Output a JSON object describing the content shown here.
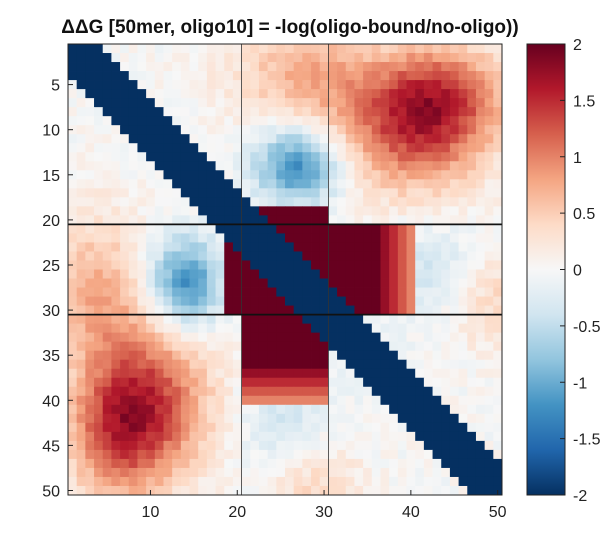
{
  "chart_data": {
    "type": "heatmap",
    "title": "ΔΔG [50mer, oligo10] = -log(oligo-bound/no-oligo))",
    "xlabel": "",
    "ylabel": "",
    "n": 50,
    "x_range": [
      1,
      50
    ],
    "y_range": [
      1,
      50
    ],
    "y_direction": "reversed",
    "x_ticks": [
      10,
      20,
      30,
      40,
      50
    ],
    "y_ticks": [
      5,
      10,
      15,
      20,
      25,
      30,
      35,
      40,
      45,
      50
    ],
    "x_tick_labels": [
      "10",
      "20",
      "30",
      "40",
      "50"
    ],
    "y_tick_labels": [
      "5",
      "10",
      "15",
      "20",
      "25",
      "30",
      "35",
      "40",
      "45",
      "50"
    ],
    "color_limits": [
      -2,
      2
    ],
    "colorbar_ticks": [
      2,
      1.5,
      1,
      0.5,
      0,
      -0.5,
      -1,
      -1.5,
      -2
    ],
    "colorbar_tick_labels": [
      "2",
      "1.5",
      "1",
      "0.5",
      "0",
      "-0.5",
      "-1",
      "-1.5",
      "-2"
    ],
    "colormap": "red-white-blue (diverging)",
    "colormap_stops": [
      "#053061",
      "#2166ac",
      "#4393c3",
      "#92c5de",
      "#d1e5f0",
      "#f7f7f7",
      "#fddbc7",
      "#f4a582",
      "#d6604d",
      "#b2182b",
      "#67001f"
    ],
    "oligo_region": [
      21,
      30
    ],
    "reference_lines": {
      "vertical_x": [
        20.5,
        30.5
      ],
      "horizontal_y": [
        20.5,
        30.5
      ]
    },
    "grid": false,
    "colorbar_position": "right",
    "description_of_values": {
      "diagonal_band": "|i-j| <= 3 : -2 (saturated blue)",
      "hairpin_region": "j in 21-30 paired with i in 19-40 (and symmetric): ~+2 (saturated red)",
      "oligo_adjacent": "i,j near 21-30 crossed with 10-20 / 30-40: mildly negative (light to medium blue)",
      "far_field": "|i-j| large, between oligo flanks: mildly positive (light red), up to ~1"
    }
  }
}
